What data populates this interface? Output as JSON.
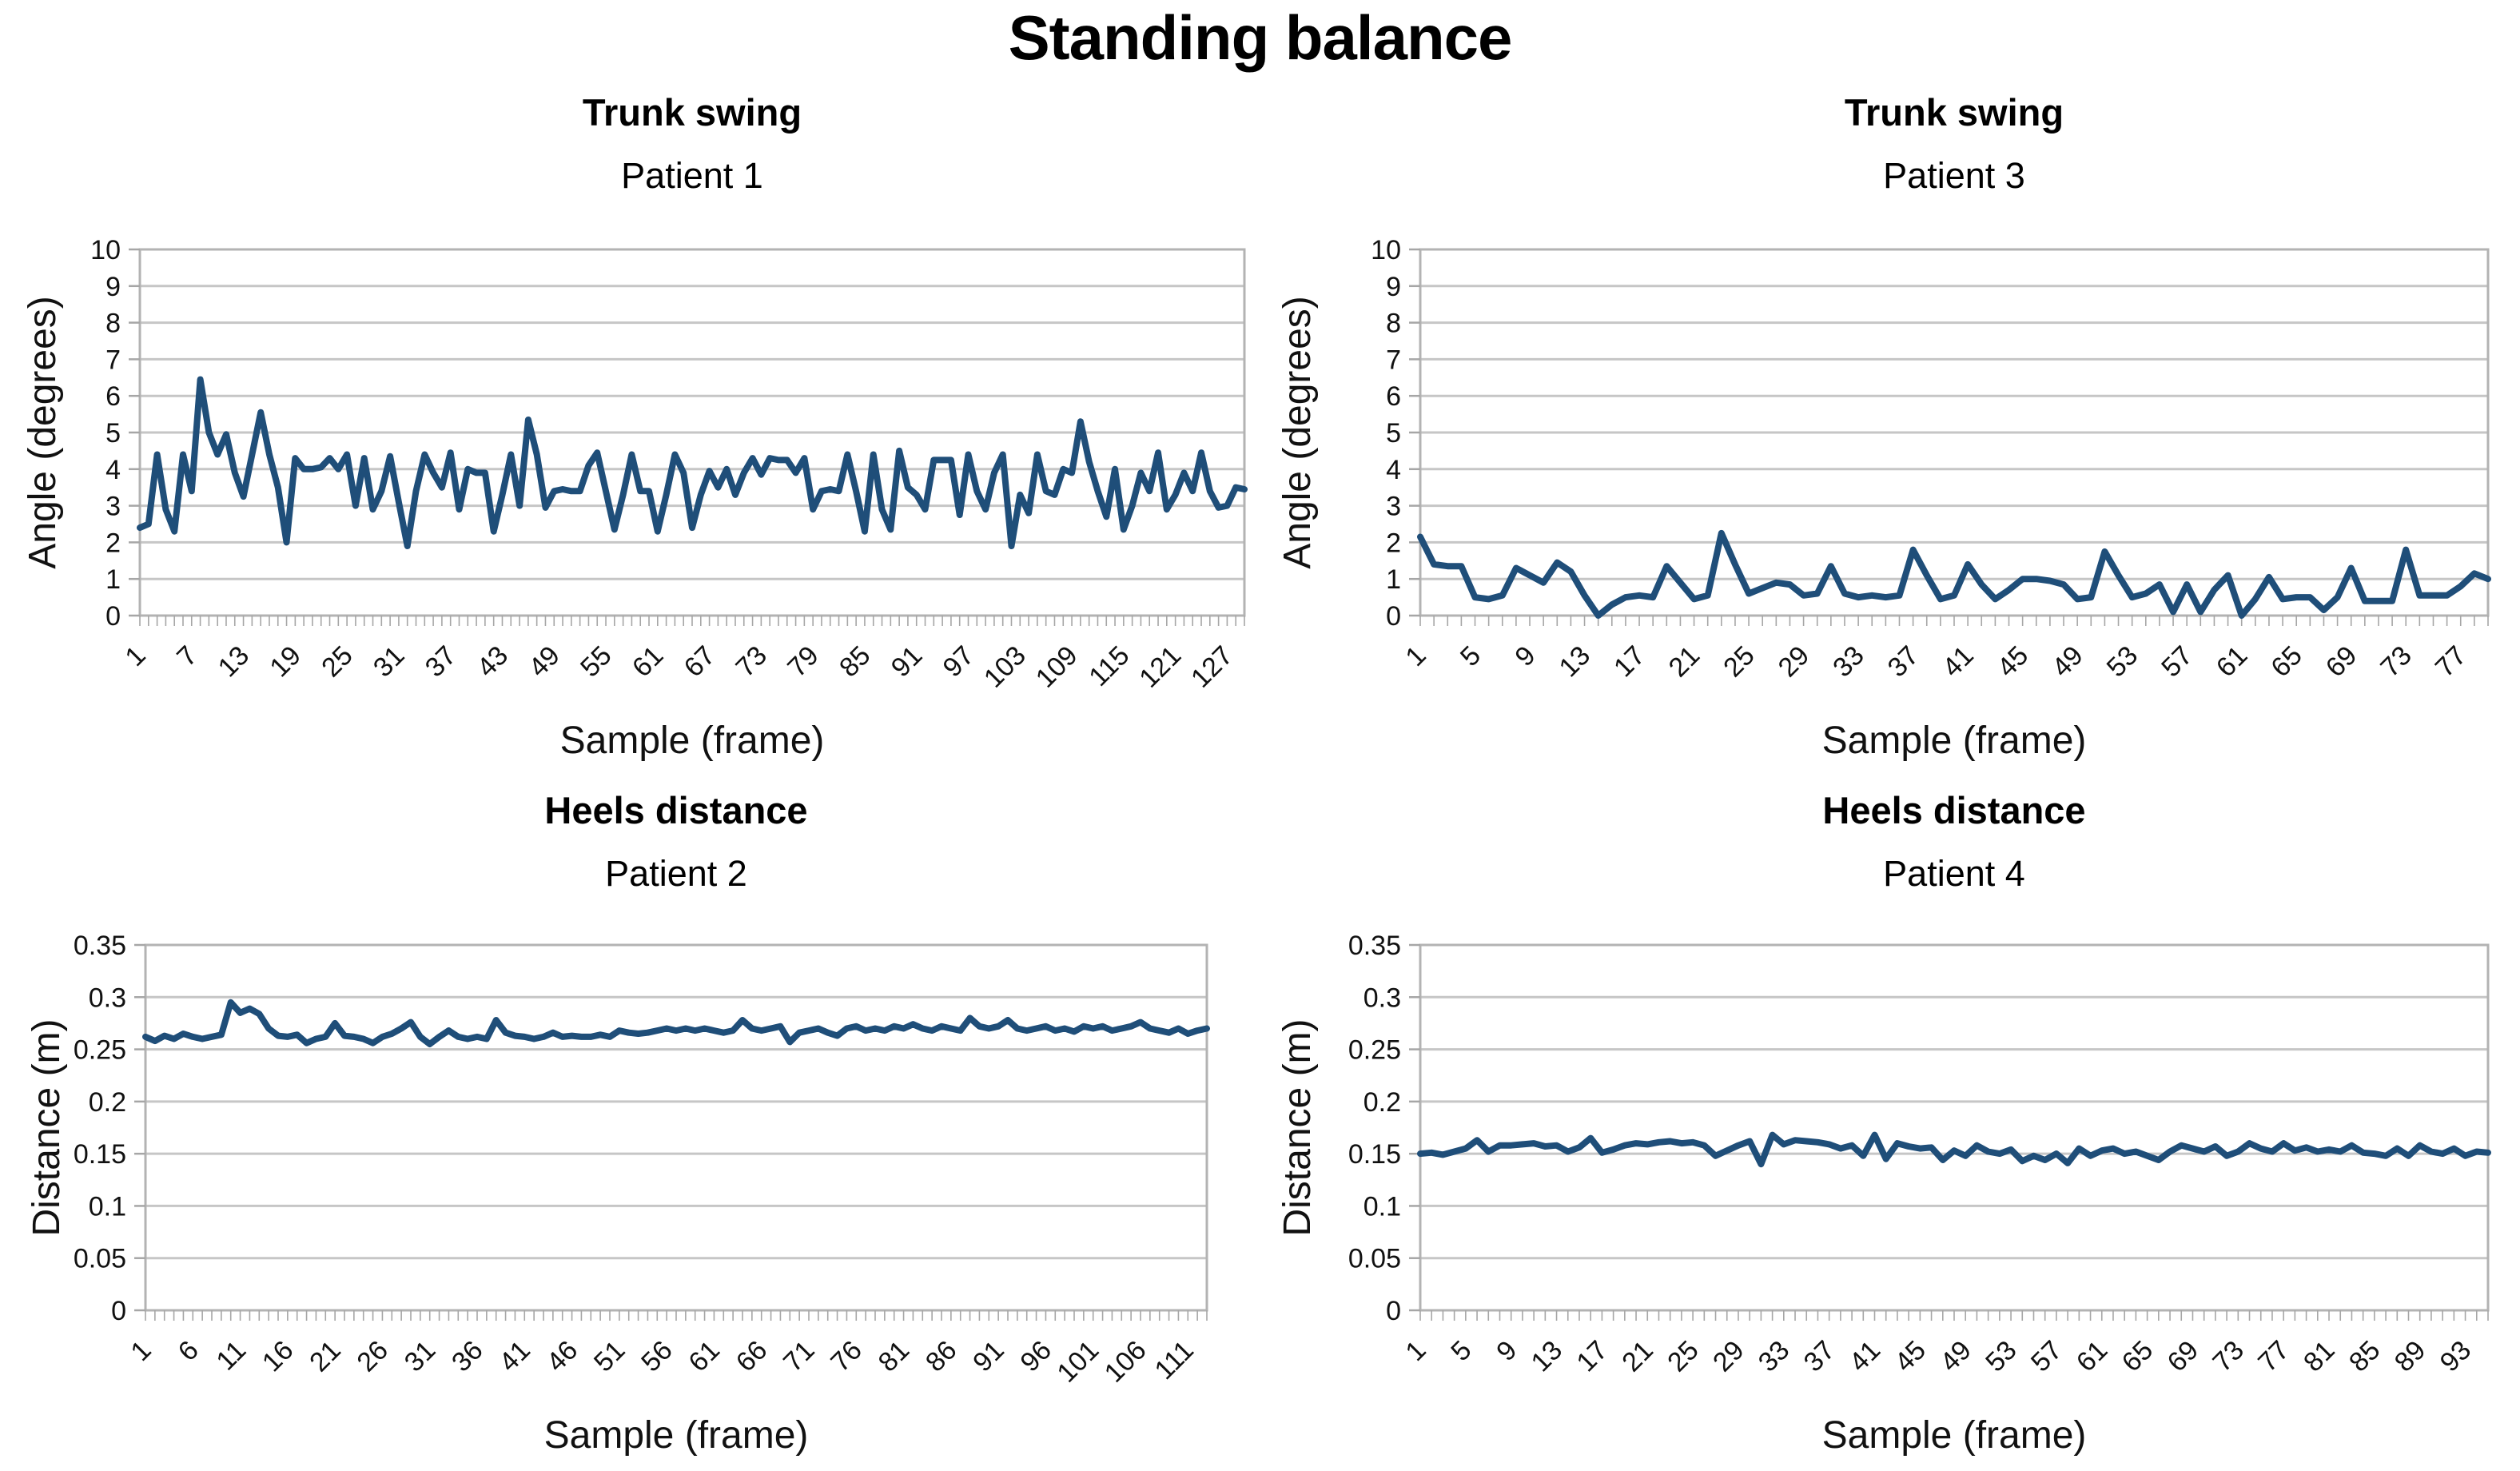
{
  "page": {
    "title": "Standing balance"
  },
  "colors": {
    "series_line": "#1F4E79",
    "gridline": "#C6C6C6",
    "plot_border": "#B3B3B3",
    "tick_mark": "#A6A6A6",
    "text": "#000000",
    "background": "#FFFFFF"
  },
  "chart_data": [
    {
      "type": "line",
      "title": "Trunk swing",
      "subtitle": "Patient 1",
      "xlabel": "Sample (frame)",
      "ylabel": "Angle (degrees)",
      "ylim": [
        0,
        10
      ],
      "ytick_step": 1,
      "grid": "horizontal",
      "legend": "none",
      "line_color": "#1F4E79",
      "xtick_labels": [
        1,
        7,
        13,
        19,
        25,
        31,
        37,
        43,
        49,
        55,
        61,
        67,
        73,
        79,
        85,
        91,
        97,
        103,
        109,
        115,
        121,
        127
      ],
      "values": [
        2.4,
        2.5,
        4.4,
        2.9,
        2.3,
        4.4,
        3.4,
        6.45,
        5.0,
        4.4,
        4.95,
        3.9,
        3.25,
        4.4,
        5.55,
        4.4,
        3.5,
        2.0,
        4.3,
        4.0,
        4.0,
        4.05,
        4.3,
        4.0,
        4.4,
        3.0,
        4.3,
        2.9,
        3.4,
        4.35,
        3.1,
        1.9,
        3.4,
        4.4,
        3.9,
        3.5,
        4.45,
        2.9,
        4.0,
        3.9,
        3.9,
        2.3,
        3.3,
        4.4,
        3.0,
        5.35,
        4.4,
        2.95,
        3.4,
        3.45,
        3.4,
        3.4,
        4.1,
        4.45,
        3.4,
        2.35,
        3.3,
        4.4,
        3.4,
        3.4,
        2.3,
        3.3,
        4.4,
        3.9,
        2.4,
        3.3,
        3.95,
        3.5,
        4.0,
        3.3,
        3.9,
        4.3,
        3.85,
        4.3,
        4.25,
        4.25,
        3.9,
        4.3,
        2.9,
        3.4,
        3.45,
        3.4,
        4.4,
        3.4,
        2.3,
        4.4,
        2.9,
        2.35,
        4.5,
        3.5,
        3.3,
        2.9,
        4.25,
        4.25,
        4.25,
        2.75,
        4.4,
        3.4,
        2.9,
        3.9,
        4.4,
        1.9,
        3.3,
        2.8,
        4.4,
        3.4,
        3.3,
        4.0,
        3.9,
        5.3,
        4.2,
        3.4,
        2.7,
        4.0,
        2.35,
        3.0,
        3.9,
        3.4,
        4.45,
        2.9,
        3.3,
        3.9,
        3.4,
        4.45,
        3.4,
        2.95,
        3.0,
        3.5,
        3.45
      ]
    },
    {
      "type": "line",
      "title": "Trunk swing",
      "subtitle": "Patient 3",
      "xlabel": "Sample (frame)",
      "ylabel": "Angle (degrees)",
      "ylim": [
        0,
        10
      ],
      "ytick_step": 1,
      "grid": "horizontal",
      "legend": "none",
      "line_color": "#1F4E79",
      "xtick_labels": [
        1,
        5,
        9,
        13,
        17,
        21,
        25,
        29,
        33,
        37,
        41,
        45,
        49,
        53,
        57,
        61,
        65,
        69,
        73,
        77
      ],
      "values": [
        2.15,
        1.4,
        1.35,
        1.35,
        0.5,
        0.45,
        0.55,
        1.3,
        1.1,
        0.9,
        1.45,
        1.2,
        0.55,
        0.0,
        0.3,
        0.5,
        0.55,
        0.5,
        1.35,
        0.9,
        0.45,
        0.55,
        2.25,
        1.4,
        0.6,
        0.75,
        0.9,
        0.85,
        0.55,
        0.6,
        1.35,
        0.6,
        0.5,
        0.55,
        0.5,
        0.55,
        1.8,
        1.1,
        0.45,
        0.55,
        1.4,
        0.85,
        0.45,
        0.7,
        1.0,
        1.0,
        0.95,
        0.85,
        0.45,
        0.5,
        1.75,
        1.1,
        0.5,
        0.6,
        0.85,
        0.1,
        0.85,
        0.1,
        0.7,
        1.1,
        0.0,
        0.45,
        1.05,
        0.45,
        0.5,
        0.5,
        0.15,
        0.5,
        1.3,
        0.4,
        0.4,
        0.4,
        1.8,
        0.55,
        0.55,
        0.55,
        0.8,
        1.15,
        1.0
      ]
    },
    {
      "type": "line",
      "title": "Heels distance",
      "subtitle": "Patient 2",
      "xlabel": "Sample (frame)",
      "ylabel": "Distance (m)",
      "ylim": [
        0,
        0.35
      ],
      "ytick_step": 0.05,
      "grid": "horizontal",
      "legend": "none",
      "line_color": "#1F4E79",
      "xtick_labels": [
        1,
        6,
        11,
        16,
        21,
        26,
        31,
        36,
        41,
        46,
        51,
        56,
        61,
        66,
        71,
        76,
        81,
        86,
        91,
        96,
        101,
        106,
        111
      ],
      "values": [
        0.262,
        0.258,
        0.263,
        0.26,
        0.265,
        0.262,
        0.26,
        0.262,
        0.264,
        0.295,
        0.285,
        0.289,
        0.284,
        0.27,
        0.263,
        0.262,
        0.264,
        0.256,
        0.26,
        0.262,
        0.275,
        0.263,
        0.262,
        0.26,
        0.256,
        0.262,
        0.265,
        0.27,
        0.276,
        0.262,
        0.255,
        0.262,
        0.268,
        0.262,
        0.26,
        0.262,
        0.26,
        0.278,
        0.266,
        0.263,
        0.262,
        0.26,
        0.262,
        0.266,
        0.262,
        0.263,
        0.262,
        0.262,
        0.264,
        0.262,
        0.268,
        0.266,
        0.265,
        0.266,
        0.268,
        0.27,
        0.268,
        0.27,
        0.268,
        0.27,
        0.268,
        0.266,
        0.268,
        0.278,
        0.27,
        0.268,
        0.27,
        0.272,
        0.257,
        0.266,
        0.268,
        0.27,
        0.266,
        0.263,
        0.27,
        0.272,
        0.268,
        0.27,
        0.268,
        0.272,
        0.27,
        0.274,
        0.27,
        0.268,
        0.272,
        0.27,
        0.268,
        0.28,
        0.272,
        0.27,
        0.272,
        0.278,
        0.27,
        0.268,
        0.27,
        0.272,
        0.268,
        0.27,
        0.267,
        0.272,
        0.27,
        0.272,
        0.268,
        0.27,
        0.272,
        0.276,
        0.27,
        0.268,
        0.266,
        0.27,
        0.265,
        0.268,
        0.27
      ]
    },
    {
      "type": "line",
      "title": "Heels distance",
      "subtitle": "Patient 4",
      "xlabel": "Sample (frame)",
      "ylabel": "Distance (m)",
      "ylim": [
        0,
        0.35
      ],
      "ytick_step": 0.05,
      "grid": "horizontal",
      "legend": "none",
      "line_color": "#1F4E79",
      "xtick_labels": [
        1,
        5,
        9,
        13,
        17,
        21,
        25,
        29,
        33,
        37,
        41,
        45,
        49,
        53,
        57,
        61,
        65,
        69,
        73,
        77,
        81,
        85,
        89,
        93
      ],
      "values": [
        0.15,
        0.151,
        0.149,
        0.152,
        0.155,
        0.163,
        0.152,
        0.158,
        0.158,
        0.159,
        0.16,
        0.157,
        0.158,
        0.152,
        0.156,
        0.165,
        0.151,
        0.154,
        0.158,
        0.16,
        0.159,
        0.161,
        0.162,
        0.16,
        0.161,
        0.158,
        0.148,
        0.153,
        0.158,
        0.162,
        0.14,
        0.168,
        0.159,
        0.163,
        0.162,
        0.161,
        0.159,
        0.155,
        0.158,
        0.148,
        0.168,
        0.145,
        0.16,
        0.157,
        0.155,
        0.156,
        0.144,
        0.153,
        0.148,
        0.158,
        0.152,
        0.15,
        0.154,
        0.143,
        0.148,
        0.144,
        0.15,
        0.141,
        0.155,
        0.148,
        0.153,
        0.155,
        0.15,
        0.152,
        0.148,
        0.144,
        0.152,
        0.158,
        0.155,
        0.152,
        0.157,
        0.148,
        0.152,
        0.16,
        0.155,
        0.152,
        0.16,
        0.153,
        0.156,
        0.152,
        0.154,
        0.152,
        0.158,
        0.151,
        0.15,
        0.148,
        0.155,
        0.148,
        0.158,
        0.152,
        0.15,
        0.155,
        0.148,
        0.152,
        0.151
      ]
    }
  ]
}
